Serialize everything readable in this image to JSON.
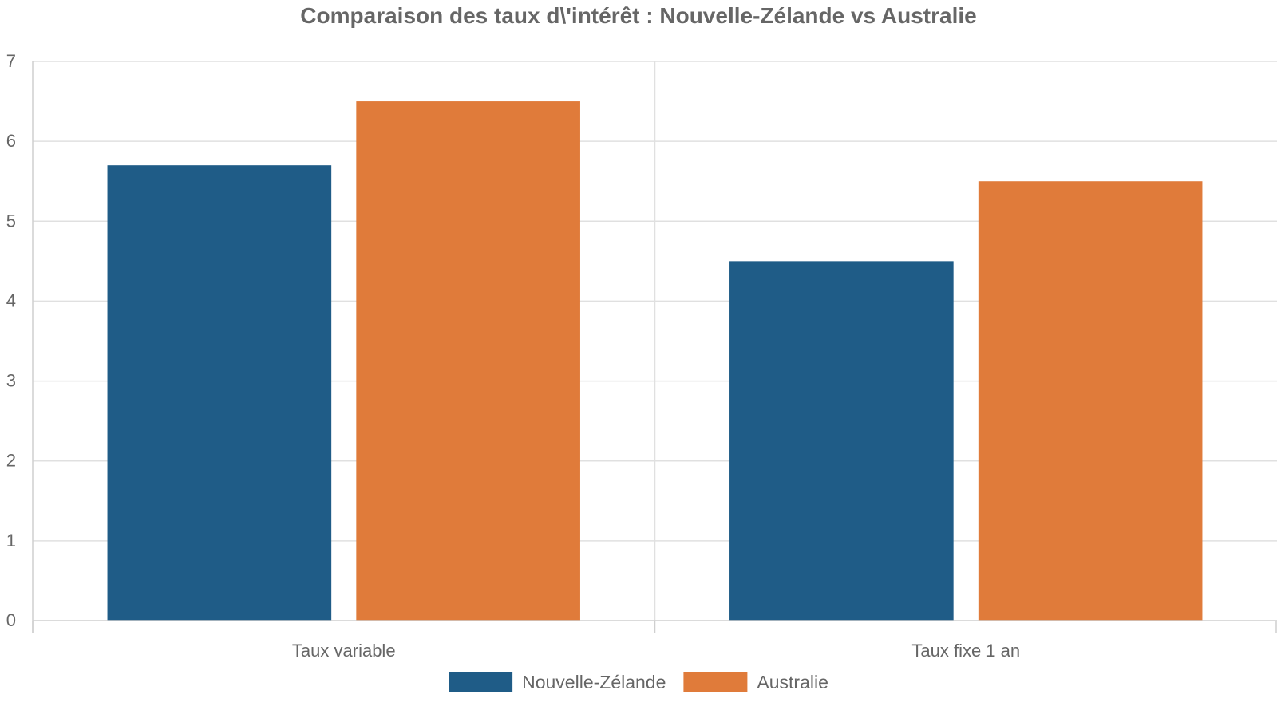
{
  "chart_data": {
    "type": "bar",
    "title": "Comparaison des taux d\\'intérêt : Nouvelle-Zélande vs Australie",
    "categories": [
      "Taux variable",
      "Taux fixe 1 an"
    ],
    "series": [
      {
        "name": "Nouvelle-Zélande",
        "values": [
          5.7,
          4.5
        ],
        "color": "#1f5c87"
      },
      {
        "name": "Australie",
        "values": [
          6.5,
          5.5
        ],
        "color": "#e07b3a"
      }
    ],
    "ylim": [
      0,
      7
    ],
    "yticks": [
      "0",
      "1",
      "2",
      "3",
      "4",
      "5",
      "6",
      "7"
    ],
    "grid": true,
    "legend_position": "bottom-center"
  }
}
